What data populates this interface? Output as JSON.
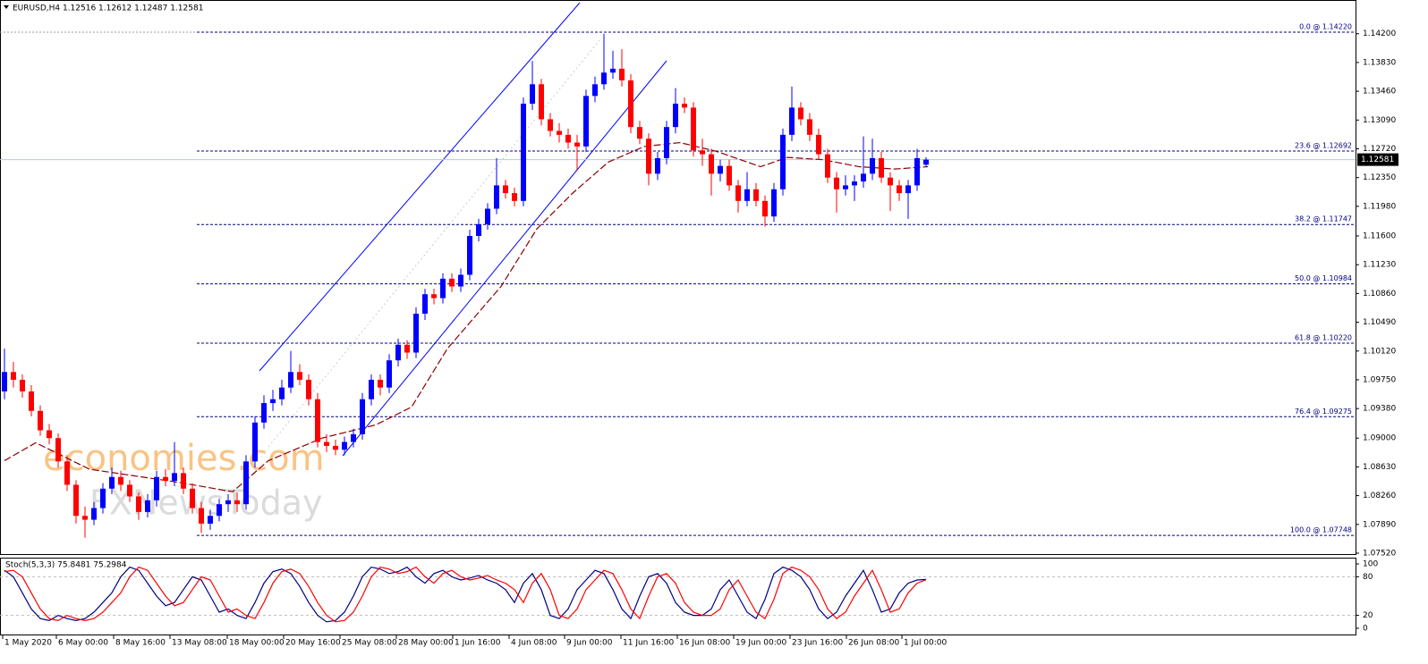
{
  "chart_data": {
    "type": "candlestick",
    "title": "EURUSD,H4  1.12516 1.12612 1.12487 1.12581",
    "up_color": "#0000ff",
    "down_color": "#ff0000",
    "xlim": [
      -0.5,
      151.0
    ],
    "ylim": [
      1.0752,
      1.1422
    ],
    "yticks": [
      {
        "value": 1.142,
        "label": "1.14200"
      },
      {
        "value": 1.1383,
        "label": "1.13830"
      },
      {
        "value": 1.1346,
        "label": "1.13460"
      },
      {
        "value": 1.1309,
        "label": "1.13090"
      },
      {
        "value": 1.1272,
        "label": "1.12720"
      },
      {
        "value": 1.1235,
        "label": "1.12350"
      },
      {
        "value": 1.1198,
        "label": "1.11980"
      },
      {
        "value": 1.116,
        "label": "1.11600"
      },
      {
        "value": 1.1123,
        "label": "1.11230"
      },
      {
        "value": 1.1086,
        "label": "1.10860"
      },
      {
        "value": 1.1049,
        "label": "1.10490"
      },
      {
        "value": 1.1012,
        "label": "1.10120"
      },
      {
        "value": 1.0975,
        "label": "1.09750"
      },
      {
        "value": 1.0938,
        "label": "1.09380"
      },
      {
        "value": 1.09,
        "label": "1.09000"
      },
      {
        "value": 1.0863,
        "label": "1.08630"
      },
      {
        "value": 1.0826,
        "label": "1.08260"
      },
      {
        "value": 1.0789,
        "label": "1.07890"
      },
      {
        "value": 1.0752,
        "label": "1.07520"
      }
    ],
    "xticks": [
      {
        "value": -0.2,
        "label": "1 May 2020"
      },
      {
        "value": 5.8,
        "label": "6 May 00:00"
      },
      {
        "value": 12.2,
        "label": "8 May 16:00"
      },
      {
        "value": 18.5,
        "label": "13 May 08:00"
      },
      {
        "value": 24.9,
        "label": "18 May 00:00"
      },
      {
        "value": 31.2,
        "label": "20 May 16:00"
      },
      {
        "value": 37.5,
        "label": "25 May 08:00"
      },
      {
        "value": 43.8,
        "label": "28 May 00:00"
      },
      {
        "value": 50.1,
        "label": "1 Jun 16:00"
      },
      {
        "value": 56.4,
        "label": "4 Jun 08:00"
      },
      {
        "value": 62.6,
        "label": "9 Jun 00:00"
      },
      {
        "value": 68.9,
        "label": "11 Jun 16:00"
      },
      {
        "value": 75.2,
        "label": "16 Jun 08:00"
      },
      {
        "value": 81.5,
        "label": "19 Jun 00:00"
      },
      {
        "value": 87.8,
        "label": "23 Jun 16:00"
      },
      {
        "value": 94.1,
        "label": "26 Jun 08:00"
      },
      {
        "value": 100.3,
        "label": "1 Jul 00:00"
      }
    ],
    "last_price": 1.12581,
    "fib_levels": [
      {
        "value": 1.1422,
        "label": "0.0 @ 1.14220"
      },
      {
        "value": 1.12692,
        "label": "23.6 @ 1.12692"
      },
      {
        "value": 1.11747,
        "label": "38.2 @ 1.11747"
      },
      {
        "value": 1.10984,
        "label": "50.0 @ 1.10984"
      },
      {
        "value": 1.1022,
        "label": "61.8 @ 1.10220"
      },
      {
        "value": 1.09275,
        "label": "76.4 @ 1.09275"
      },
      {
        "value": 1.07748,
        "label": "100.0 @ 1.07748"
      }
    ],
    "candles": [
      [
        1.096,
        1.1015,
        1.095,
        1.0985
      ],
      [
        1.0985,
        1.0998,
        1.0965,
        1.0975
      ],
      [
        1.0975,
        1.0982,
        1.0952,
        1.096
      ],
      [
        1.096,
        1.0968,
        1.0928,
        1.0935
      ],
      [
        1.0935,
        1.0942,
        1.0903,
        1.091
      ],
      [
        1.091,
        1.0918,
        1.0892,
        1.09
      ],
      [
        1.09,
        1.0906,
        1.0862,
        1.087
      ],
      [
        1.087,
        1.0878,
        1.0832,
        1.084
      ],
      [
        1.084,
        1.0846,
        1.079,
        1.08
      ],
      [
        1.08,
        1.0812,
        1.0772,
        1.0795
      ],
      [
        1.0795,
        1.0818,
        1.0788,
        1.081
      ],
      [
        1.081,
        1.0842,
        1.0803,
        1.0835
      ],
      [
        1.0835,
        1.0862,
        1.0828,
        1.085
      ],
      [
        1.085,
        1.0858,
        1.0832,
        1.084
      ],
      [
        1.084,
        1.0846,
        1.0818,
        1.0825
      ],
      [
        1.0825,
        1.083,
        1.0795,
        1.0805
      ],
      [
        1.0805,
        1.0828,
        1.0798,
        1.082
      ],
      [
        1.082,
        1.0858,
        1.0812,
        1.085
      ],
      [
        1.085,
        1.086,
        1.0838,
        1.0845
      ],
      [
        1.0845,
        1.0895,
        1.0838,
        1.0855
      ],
      [
        1.0855,
        1.0862,
        1.0828,
        1.0835
      ],
      [
        1.0835,
        1.0842,
        1.0803,
        1.081
      ],
      [
        1.081,
        1.0818,
        1.0778,
        1.079
      ],
      [
        1.079,
        1.0808,
        1.0782,
        1.08
      ],
      [
        1.08,
        1.0822,
        1.0793,
        1.0815
      ],
      [
        1.0815,
        1.0828,
        1.0805,
        1.082
      ],
      [
        1.082,
        1.083,
        1.0805,
        1.0815
      ],
      [
        1.0815,
        1.0878,
        1.0808,
        1.087
      ],
      [
        1.087,
        1.0928,
        1.0862,
        1.092
      ],
      [
        1.092,
        1.0955,
        1.0912,
        1.0945
      ],
      [
        1.0945,
        1.0962,
        1.0935,
        1.095
      ],
      [
        1.095,
        1.0975,
        1.0942,
        1.0965
      ],
      [
        1.0965,
        1.1012,
        1.0958,
        1.0985
      ],
      [
        1.0985,
        1.0995,
        1.0968,
        1.0975
      ],
      [
        1.0975,
        1.0982,
        1.0942,
        1.095
      ],
      [
        1.095,
        1.0958,
        1.0888,
        1.0895
      ],
      [
        1.0895,
        1.0905,
        1.0882,
        1.089
      ],
      [
        1.089,
        1.0898,
        1.0878,
        1.0885
      ],
      [
        1.0885,
        1.0902,
        1.0878,
        1.0895
      ],
      [
        1.0895,
        1.0912,
        1.0888,
        1.0905
      ],
      [
        1.0905,
        1.0958,
        1.0898,
        1.095
      ],
      [
        1.095,
        1.0982,
        1.0942,
        1.0975
      ],
      [
        1.0975,
        1.0982,
        1.0955,
        1.0965
      ],
      [
        1.0965,
        1.1008,
        1.0958,
        1.1
      ],
      [
        1.1,
        1.1028,
        1.0992,
        1.102
      ],
      [
        1.102,
        1.1026,
        1.1002,
        1.101
      ],
      [
        1.101,
        1.1068,
        1.1003,
        1.106
      ],
      [
        1.106,
        1.1092,
        1.1052,
        1.1085
      ],
      [
        1.1085,
        1.1092,
        1.1072,
        1.108
      ],
      [
        1.108,
        1.1112,
        1.1073,
        1.1105
      ],
      [
        1.1105,
        1.1112,
        1.1088,
        1.1095
      ],
      [
        1.1095,
        1.1118,
        1.1088,
        1.111
      ],
      [
        1.111,
        1.1168,
        1.1103,
        1.116
      ],
      [
        1.116,
        1.1182,
        1.1153,
        1.1175
      ],
      [
        1.1175,
        1.1202,
        1.1168,
        1.1195
      ],
      [
        1.1195,
        1.126,
        1.1188,
        1.1225
      ],
      [
        1.1225,
        1.1232,
        1.1208,
        1.1215
      ],
      [
        1.1215,
        1.1222,
        1.1198,
        1.1205
      ],
      [
        1.1205,
        1.1338,
        1.1198,
        1.133
      ],
      [
        1.133,
        1.1385,
        1.1322,
        1.1355
      ],
      [
        1.1355,
        1.1362,
        1.1302,
        1.131
      ],
      [
        1.131,
        1.1318,
        1.1288,
        1.1295
      ],
      [
        1.1295,
        1.1305,
        1.128,
        1.129
      ],
      [
        1.129,
        1.1298,
        1.1272,
        1.128
      ],
      [
        1.128,
        1.129,
        1.1245,
        1.1275
      ],
      [
        1.1275,
        1.1348,
        1.1268,
        1.134
      ],
      [
        1.134,
        1.1365,
        1.1332,
        1.1355
      ],
      [
        1.1355,
        1.142,
        1.1348,
        1.137
      ],
      [
        1.137,
        1.1398,
        1.1362,
        1.1375
      ],
      [
        1.1375,
        1.14,
        1.1352,
        1.136
      ],
      [
        1.136,
        1.1368,
        1.1292,
        1.13
      ],
      [
        1.13,
        1.1308,
        1.1278,
        1.1285
      ],
      [
        1.1285,
        1.1292,
        1.1225,
        1.124
      ],
      [
        1.124,
        1.1268,
        1.1232,
        1.126
      ],
      [
        1.126,
        1.1308,
        1.1252,
        1.13
      ],
      [
        1.13,
        1.135,
        1.1292,
        1.133
      ],
      [
        1.133,
        1.1338,
        1.1318,
        1.1325
      ],
      [
        1.1325,
        1.1332,
        1.1262,
        1.127
      ],
      [
        1.127,
        1.1285,
        1.125,
        1.1265
      ],
      [
        1.1265,
        1.1272,
        1.1212,
        1.124
      ],
      [
        1.124,
        1.1258,
        1.123,
        1.125
      ],
      [
        1.125,
        1.1258,
        1.1218,
        1.1225
      ],
      [
        1.1225,
        1.1232,
        1.119,
        1.1205
      ],
      [
        1.1205,
        1.1242,
        1.1198,
        1.122
      ],
      [
        1.122,
        1.1228,
        1.1198,
        1.1205
      ],
      [
        1.1205,
        1.1212,
        1.1172,
        1.1185
      ],
      [
        1.1185,
        1.1228,
        1.1178,
        1.122
      ],
      [
        1.122,
        1.1298,
        1.1212,
        1.129
      ],
      [
        1.129,
        1.1352,
        1.1282,
        1.1325
      ],
      [
        1.1325,
        1.1332,
        1.1302,
        1.131
      ],
      [
        1.131,
        1.1318,
        1.1282,
        1.129
      ],
      [
        1.129,
        1.1298,
        1.1258,
        1.1265
      ],
      [
        1.1265,
        1.1272,
        1.1228,
        1.1235
      ],
      [
        1.1235,
        1.1242,
        1.119,
        1.122
      ],
      [
        1.122,
        1.1238,
        1.1212,
        1.1225
      ],
      [
        1.1225,
        1.1238,
        1.1205,
        1.123
      ],
      [
        1.123,
        1.1288,
        1.1222,
        1.124
      ],
      [
        1.124,
        1.1285,
        1.1232,
        1.126
      ],
      [
        1.126,
        1.1268,
        1.1228,
        1.1235
      ],
      [
        1.1235,
        1.1242,
        1.1192,
        1.1225
      ],
      [
        1.1225,
        1.1232,
        1.1205,
        1.1215
      ],
      [
        1.1215,
        1.1232,
        1.1182,
        1.1225
      ],
      [
        1.1225,
        1.1272,
        1.1218,
        1.126
      ],
      [
        1.12516,
        1.12612,
        1.12487,
        1.12581
      ]
    ],
    "moving_average": {
      "color": "#8b0000",
      "x": [
        0,
        3.5,
        9.5,
        19.5,
        25.5,
        29.5,
        35.5,
        41.5,
        45.5,
        49.5,
        55.5,
        59.5,
        63.5,
        67.5,
        71.5,
        75.5,
        79.5,
        84.5,
        87.5,
        91.5,
        95.5,
        99.5,
        103.2
      ],
      "values": [
        1.0871,
        1.0894,
        1.086,
        1.0843,
        1.0831,
        1.0871,
        1.09,
        1.0917,
        1.094,
        1.1015,
        1.1095,
        1.1169,
        1.1215,
        1.1255,
        1.1275,
        1.128,
        1.1269,
        1.1249,
        1.1261,
        1.1258,
        1.1249,
        1.1246,
        1.1249
      ]
    },
    "watermark": [
      "economies.com",
      "FXNewsToday"
    ],
    "stochastic": {
      "title": "Stoch(5,3,3) 75.8481 75.2984",
      "ylim": [
        0,
        100
      ],
      "yticks": [
        0,
        20,
        80,
        100
      ],
      "levels": [
        20,
        80
      ],
      "series": [
        {
          "name": "Main",
          "color": "#000080",
          "values": [
            90,
            80,
            55,
            30,
            15,
            12,
            20,
            15,
            12,
            15,
            25,
            40,
            55,
            80,
            95,
            90,
            70,
            50,
            35,
            40,
            60,
            80,
            75,
            50,
            25,
            30,
            20,
            15,
            40,
            70,
            88,
            92,
            85,
            65,
            40,
            20,
            10,
            12,
            25,
            50,
            80,
            95,
            92,
            85,
            88,
            95,
            80,
            70,
            85,
            90,
            80,
            75,
            78,
            82,
            75,
            70,
            60,
            40,
            70,
            85,
            60,
            20,
            15,
            30,
            60,
            75,
            90,
            85,
            60,
            30,
            15,
            50,
            80,
            85,
            70,
            40,
            25,
            20,
            20,
            30,
            60,
            75,
            50,
            25,
            15,
            45,
            85,
            95,
            90,
            80,
            60,
            30,
            15,
            25,
            50,
            70,
            90,
            60,
            25,
            30,
            55,
            70,
            75,
            75.8481
          ]
        },
        {
          "name": "Signal",
          "color": "#ff0000",
          "values": [
            88,
            90,
            80,
            55,
            30,
            15,
            12,
            20,
            15,
            12,
            15,
            25,
            40,
            55,
            80,
            95,
            90,
            70,
            50,
            35,
            40,
            60,
            80,
            75,
            50,
            25,
            30,
            20,
            15,
            40,
            70,
            88,
            92,
            85,
            65,
            40,
            20,
            10,
            12,
            25,
            50,
            80,
            95,
            92,
            85,
            88,
            95,
            80,
            70,
            85,
            90,
            80,
            75,
            78,
            82,
            75,
            70,
            60,
            40,
            70,
            85,
            60,
            20,
            15,
            30,
            60,
            75,
            90,
            85,
            60,
            30,
            15,
            50,
            80,
            85,
            70,
            40,
            25,
            20,
            20,
            30,
            60,
            75,
            50,
            25,
            15,
            45,
            85,
            95,
            90,
            80,
            60,
            30,
            15,
            25,
            50,
            70,
            90,
            60,
            25,
            30,
            55,
            70,
            75.2984
          ]
        }
      ]
    }
  }
}
